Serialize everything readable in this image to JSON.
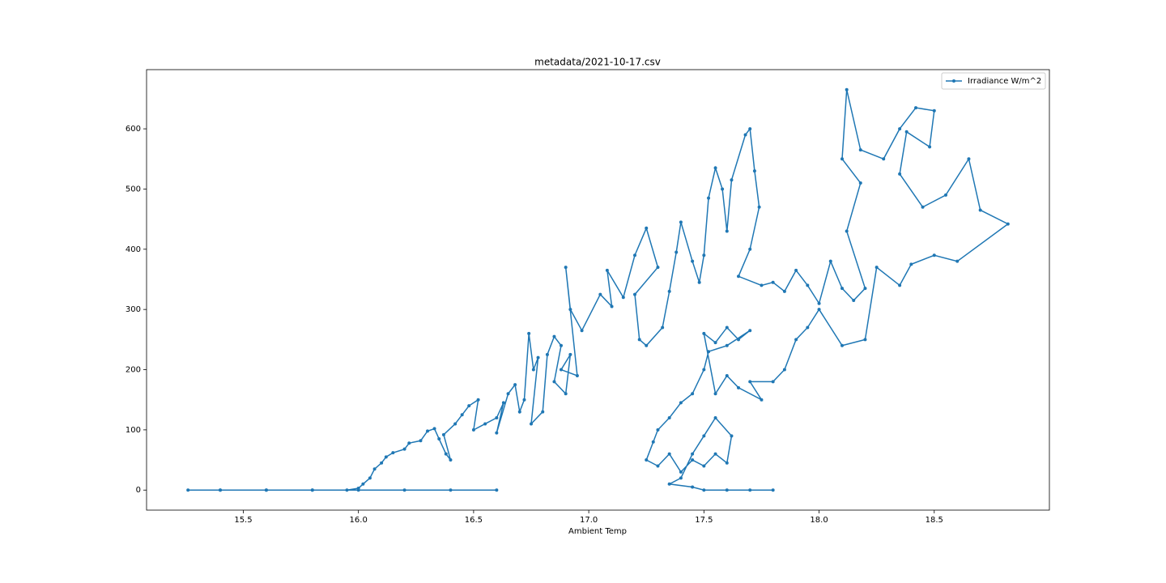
{
  "chart_data": {
    "type": "line",
    "title": "metadata/2021-10-17.csv",
    "xlabel": "Ambient Temp",
    "x": [
      16.6,
      16.4,
      16.2,
      16.0,
      15.8,
      15.6,
      15.4,
      15.26,
      15.4,
      15.6,
      15.8,
      15.95,
      16.0,
      16.02,
      16.05,
      16.07,
      16.1,
      16.12,
      16.15,
      16.2,
      16.22,
      16.27,
      16.3,
      16.33,
      16.35,
      16.38,
      16.4,
      16.37,
      16.42,
      16.45,
      16.48,
      16.52,
      16.5,
      16.55,
      16.6,
      16.63,
      16.6,
      16.65,
      16.68,
      16.7,
      16.72,
      16.74,
      16.76,
      16.78,
      16.75,
      16.8,
      16.82,
      16.85,
      16.88,
      16.85,
      16.9,
      16.92,
      16.88,
      16.95,
      16.9,
      16.92,
      16.97,
      17.05,
      17.1,
      17.08,
      17.15,
      17.2,
      17.25,
      17.3,
      17.2,
      17.22,
      17.25,
      17.32,
      17.35,
      17.38,
      17.4,
      17.45,
      17.48,
      17.5,
      17.52,
      17.55,
      17.58,
      17.6,
      17.62,
      17.68,
      17.7,
      17.72,
      17.74,
      17.7,
      17.65,
      17.75,
      17.8,
      17.85,
      17.9,
      17.95,
      18.0,
      18.05,
      18.1,
      18.15,
      18.2,
      18.12,
      18.18,
      18.1,
      18.12,
      18.18,
      18.28,
      18.35,
      18.42,
      18.5,
      18.48,
      18.38,
      18.35,
      18.45,
      18.55,
      18.65,
      18.7,
      18.82,
      18.6,
      18.5,
      18.4,
      18.35,
      18.25,
      18.2,
      18.1,
      18.0,
      17.95,
      17.9,
      17.85,
      17.8,
      17.7,
      17.75,
      17.65,
      17.6,
      17.55,
      17.5,
      17.55,
      17.6,
      17.65,
      17.7,
      17.6,
      17.52,
      17.5,
      17.45,
      17.4,
      17.35,
      17.3,
      17.28,
      17.25,
      17.3,
      17.35,
      17.4,
      17.45,
      17.5,
      17.55,
      17.6,
      17.62,
      17.55,
      17.5,
      17.45,
      17.4,
      17.35,
      17.45,
      17.5,
      17.6,
      17.7,
      17.8
    ],
    "series": [
      {
        "name": "Irradiance W/m^2",
        "color": "#1f77b4",
        "values": [
          0,
          0,
          0,
          0,
          0,
          0,
          0,
          0,
          0,
          0,
          0,
          0,
          3,
          10,
          20,
          35,
          45,
          55,
          62,
          68,
          78,
          82,
          98,
          102,
          85,
          60,
          50,
          92,
          110,
          125,
          140,
          150,
          100,
          110,
          120,
          145,
          95,
          160,
          175,
          130,
          150,
          260,
          200,
          220,
          110,
          130,
          225,
          255,
          240,
          180,
          160,
          225,
          200,
          190,
          370,
          300,
          265,
          325,
          305,
          365,
          320,
          390,
          435,
          370,
          325,
          250,
          240,
          270,
          330,
          395,
          445,
          380,
          345,
          390,
          485,
          535,
          500,
          430,
          515,
          590,
          600,
          530,
          470,
          400,
          355,
          340,
          345,
          330,
          365,
          340,
          310,
          380,
          335,
          315,
          335,
          430,
          510,
          550,
          665,
          565,
          550,
          600,
          635,
          630,
          570,
          595,
          525,
          470,
          490,
          550,
          465,
          442,
          380,
          390,
          375,
          340,
          370,
          250,
          240,
          300,
          270,
          250,
          200,
          180,
          180,
          150,
          170,
          190,
          160,
          260,
          245,
          270,
          250,
          265,
          240,
          230,
          200,
          160,
          145,
          120,
          100,
          80,
          50,
          40,
          60,
          30,
          50,
          40,
          60,
          45,
          90,
          120,
          90,
          60,
          20,
          10,
          5,
          0,
          0,
          0,
          0
        ]
      }
    ],
    "xlim": [
      15.08,
      19.0
    ],
    "ylim": [
      -33.3,
      698.3
    ],
    "xticks": [
      15.5,
      {
        "value": 16,
        "label": "16.0"
      },
      16.5,
      {
        "value": 17,
        "label": "17.0"
      },
      17.5,
      {
        "value": 18,
        "label": "18.0"
      },
      18.5
    ],
    "yticks": [
      0,
      100,
      200,
      300,
      400,
      500,
      600
    ],
    "legend": "upper right"
  }
}
